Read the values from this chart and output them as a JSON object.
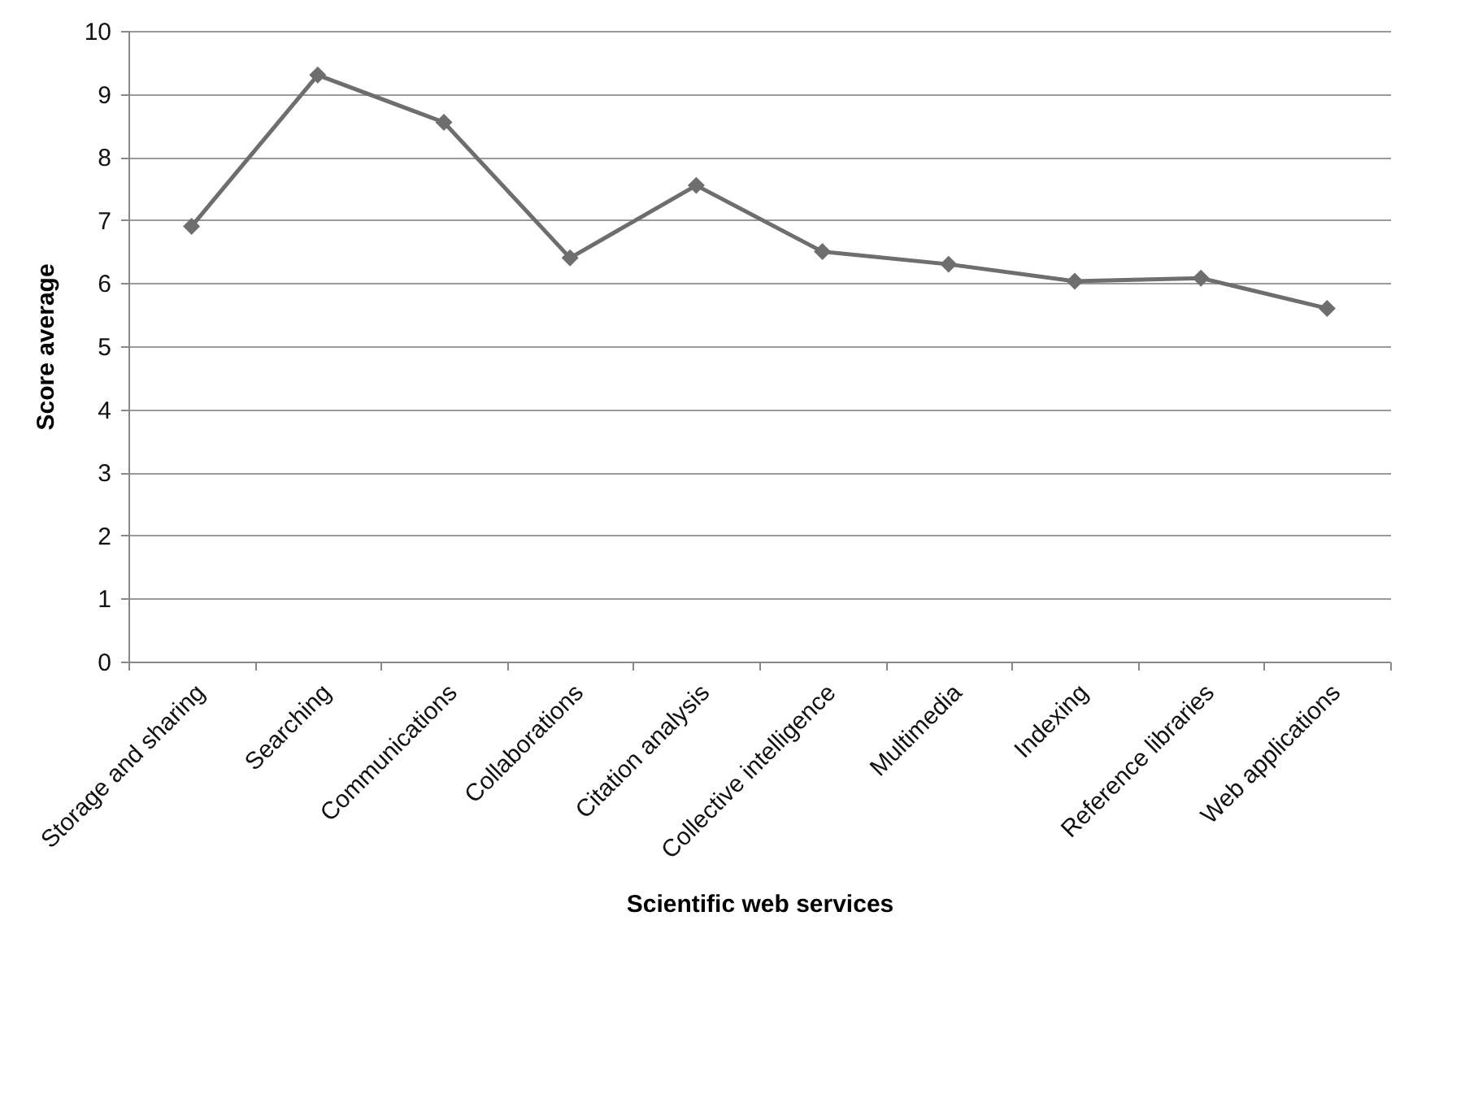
{
  "chart_data": {
    "type": "line",
    "xlabel": "Scientific web services",
    "ylabel": "Score average",
    "categories": [
      "Storage and sharing",
      "Searching",
      "Communications",
      "Collaborations",
      "Citation analysis",
      "Collective intelligence",
      "Multimedia",
      "Indexing",
      "Reference libraries",
      "Web applications"
    ],
    "series": [
      {
        "color": "#6e6e6e",
        "values": [
          6.9,
          9.3,
          8.55,
          6.4,
          7.55,
          6.5,
          6.3,
          6.03,
          6.08,
          5.6
        ]
      }
    ],
    "ylim": [
      0,
      10
    ],
    "yticks": [
      0,
      1,
      2,
      3,
      4,
      5,
      6,
      7,
      8,
      9,
      10
    ],
    "grid": "y",
    "marker": "diamond",
    "line_style": "solid"
  }
}
